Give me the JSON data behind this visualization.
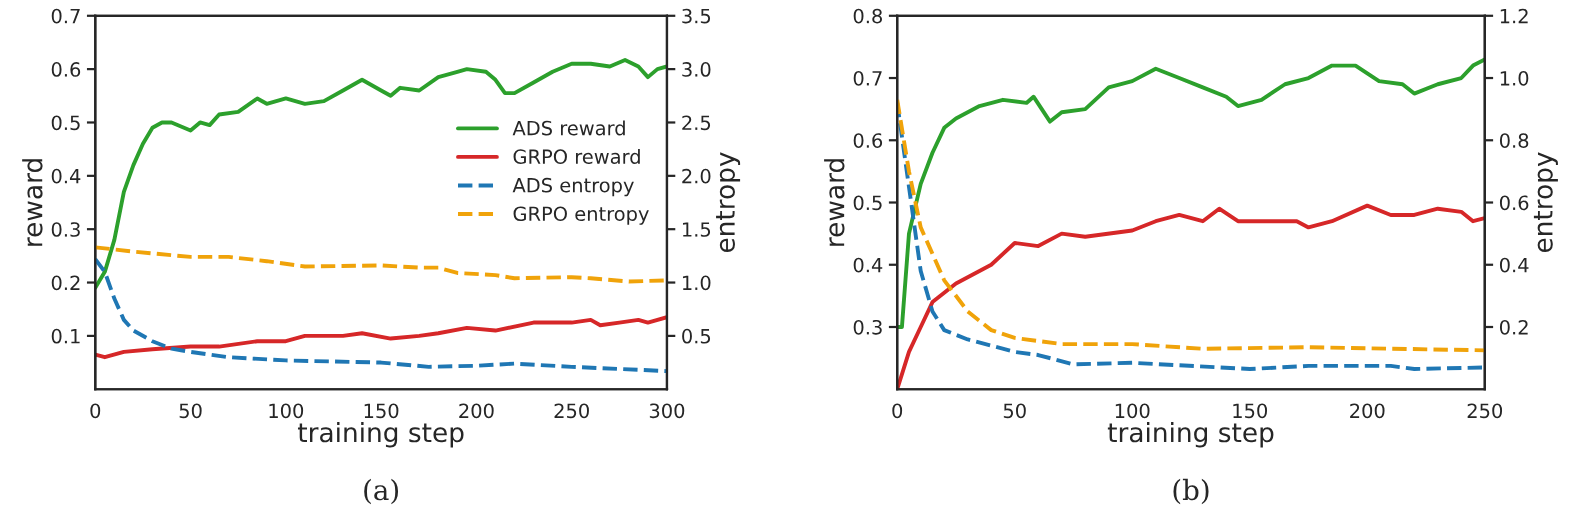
{
  "chart_data": [
    {
      "type": "line",
      "xlabel": "training step",
      "ylabel": "reward",
      "y2label": "entropy",
      "annotations": [
        "(a)"
      ],
      "legend": "right",
      "grid": false,
      "xlim": [
        0,
        300
      ],
      "xticks": [
        0,
        50,
        100,
        150,
        200,
        250,
        300
      ],
      "ylim": [
        0,
        0.7
      ],
      "yticks": [
        0.1,
        0.2,
        0.3,
        0.4,
        0.5,
        0.6,
        0.7
      ],
      "y2lim": [
        0,
        3.5
      ],
      "y2ticks": [
        0.5,
        {
          "value": 1,
          "label": "1.0"
        },
        1.5,
        {
          "value": 2,
          "label": "2.0"
        },
        2.5,
        {
          "value": 3,
          "label": "3.0"
        },
        3.5
      ],
      "series": [
        {
          "name": "ADS reward",
          "color": "#2ca02c",
          "line_style": "solid",
          "x": [
            0,
            5,
            10,
            15,
            20,
            25,
            30,
            35,
            40,
            50,
            55,
            60,
            65,
            75,
            85,
            90,
            100,
            110,
            120,
            130,
            140,
            150,
            155,
            160,
            170,
            180,
            190,
            195,
            205,
            210,
            215,
            220,
            230,
            240,
            250,
            260,
            270,
            278,
            285,
            290,
            295,
            300
          ],
          "values": [
            0.19,
            0.22,
            0.28,
            0.37,
            0.42,
            0.46,
            0.49,
            0.5,
            0.5,
            0.485,
            0.5,
            0.495,
            0.515,
            0.52,
            0.545,
            0.535,
            0.545,
            0.535,
            0.54,
            0.56,
            0.58,
            0.56,
            0.55,
            0.565,
            0.56,
            0.585,
            0.595,
            0.6,
            0.595,
            0.58,
            0.555,
            0.555,
            0.575,
            0.595,
            0.61,
            0.61,
            0.605,
            0.617,
            0.605,
            0.585,
            0.6,
            0.605
          ]
        },
        {
          "name": "GRPO reward",
          "color": "#d62728",
          "line_style": "solid",
          "x": [
            0,
            5,
            15,
            30,
            50,
            65,
            85,
            100,
            110,
            130,
            140,
            155,
            170,
            180,
            195,
            210,
            230,
            250,
            260,
            265,
            275,
            285,
            290,
            300
          ],
          "values": [
            0.065,
            0.06,
            0.07,
            0.075,
            0.08,
            0.08,
            0.09,
            0.09,
            0.1,
            0.1,
            0.105,
            0.095,
            0.1,
            0.105,
            0.115,
            0.11,
            0.125,
            0.125,
            0.13,
            0.12,
            0.125,
            0.13,
            0.125,
            0.135
          ]
        },
        {
          "name": "ADS entropy",
          "color": "#1f77b4",
          "line_style": "dashed",
          "axis": "y2",
          "x": [
            0,
            5,
            10,
            15,
            20,
            30,
            40,
            50,
            70,
            100,
            150,
            175,
            200,
            220,
            250,
            300
          ],
          "values": [
            1.22,
            1.1,
            0.85,
            0.65,
            0.55,
            0.45,
            0.38,
            0.35,
            0.3,
            0.27,
            0.25,
            0.21,
            0.22,
            0.24,
            0.21,
            0.17
          ]
        },
        {
          "name": "GRPO entropy",
          "color": "#f0a30a",
          "line_style": "dashed",
          "axis": "y2",
          "x": [
            0,
            20,
            50,
            70,
            90,
            110,
            150,
            170,
            180,
            190,
            210,
            220,
            250,
            260,
            280,
            300
          ],
          "values": [
            1.33,
            1.29,
            1.24,
            1.24,
            1.2,
            1.15,
            1.16,
            1.14,
            1.14,
            1.09,
            1.07,
            1.04,
            1.05,
            1.04,
            1.01,
            1.02
          ]
        }
      ]
    },
    {
      "type": "line",
      "xlabel": "training step",
      "ylabel": "reward",
      "y2label": "entropy",
      "annotations": [
        "(b)"
      ],
      "grid": false,
      "xlim": [
        0,
        250
      ],
      "xticks": [
        0,
        50,
        100,
        150,
        200,
        250
      ],
      "ylim": [
        0.2,
        0.8
      ],
      "yticks": [
        0.3,
        0.4,
        0.5,
        0.6,
        0.7,
        0.8
      ],
      "y2lim": [
        0,
        1.2
      ],
      "y2ticks": [
        0.2,
        0.4,
        0.6,
        0.8,
        {
          "value": 1,
          "label": "1.0"
        },
        1.2
      ],
      "series": [
        {
          "color": "#2ca02c",
          "line_style": "solid",
          "x": [
            0,
            2,
            5,
            10,
            15,
            20,
            25,
            35,
            45,
            55,
            58,
            65,
            70,
            80,
            90,
            100,
            110,
            120,
            130,
            140,
            145,
            155,
            165,
            175,
            185,
            195,
            205,
            215,
            220,
            230,
            240,
            245,
            250
          ],
          "values": [
            0.3,
            0.3,
            0.45,
            0.53,
            0.58,
            0.62,
            0.635,
            0.655,
            0.665,
            0.66,
            0.67,
            0.63,
            0.645,
            0.65,
            0.685,
            0.695,
            0.715,
            0.7,
            0.685,
            0.67,
            0.655,
            0.665,
            0.69,
            0.7,
            0.72,
            0.72,
            0.695,
            0.69,
            0.675,
            0.69,
            0.7,
            0.72,
            0.73
          ]
        },
        {
          "color": "#d62728",
          "line_style": "solid",
          "x": [
            0,
            5,
            10,
            15,
            25,
            35,
            40,
            50,
            60,
            70,
            80,
            100,
            110,
            120,
            130,
            137,
            145,
            160,
            170,
            175,
            185,
            200,
            210,
            220,
            230,
            240,
            245,
            250
          ],
          "values": [
            0.2,
            0.26,
            0.3,
            0.34,
            0.37,
            0.39,
            0.4,
            0.435,
            0.43,
            0.45,
            0.445,
            0.455,
            0.47,
            0.48,
            0.47,
            0.49,
            0.47,
            0.47,
            0.47,
            0.46,
            0.47,
            0.495,
            0.48,
            0.48,
            0.49,
            0.485,
            0.47,
            0.475
          ]
        },
        {
          "color": "#1f77b4",
          "line_style": "dashed",
          "axis": "y2",
          "x": [
            0,
            5,
            10,
            15,
            20,
            30,
            50,
            60,
            75,
            100,
            150,
            175,
            210,
            220,
            250
          ],
          "values": [
            0.92,
            0.65,
            0.38,
            0.25,
            0.19,
            0.16,
            0.12,
            0.11,
            0.08,
            0.085,
            0.065,
            0.075,
            0.075,
            0.065,
            0.07
          ]
        },
        {
          "color": "#f0a30a",
          "line_style": "dashed",
          "axis": "y2",
          "x": [
            0,
            5,
            10,
            20,
            30,
            40,
            50,
            70,
            100,
            130,
            175,
            250
          ],
          "values": [
            0.93,
            0.7,
            0.52,
            0.35,
            0.25,
            0.19,
            0.165,
            0.145,
            0.145,
            0.13,
            0.135,
            0.125
          ]
        }
      ]
    }
  ]
}
